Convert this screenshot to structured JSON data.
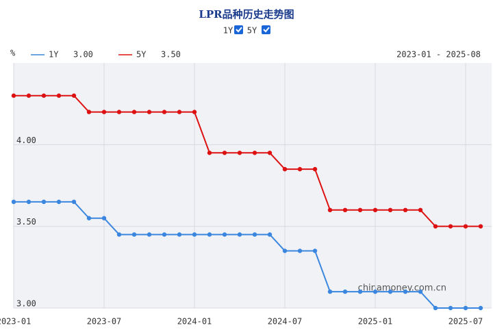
{
  "chart_data": {
    "type": "line",
    "title": "LPR品种历史走势图",
    "y_unit": "%",
    "range_label": "2023-01 - 2025-08",
    "watermark": "chinamoney.com.cn",
    "categories": [
      "2023-01",
      null,
      null,
      null,
      null,
      null,
      "2023-07",
      null,
      null,
      null,
      null,
      null,
      "2024-01",
      null,
      null,
      null,
      null,
      null,
      "2024-07",
      null,
      null,
      null,
      null,
      null,
      "2025-01",
      null,
      null,
      null,
      null,
      null,
      "2025-07",
      null
    ],
    "series": [
      {
        "name": "1Y",
        "color": "#3b86de",
        "legend_value": "3.00",
        "values": [
          3.65,
          3.65,
          3.65,
          3.65,
          3.65,
          3.55,
          3.55,
          3.45,
          3.45,
          3.45,
          3.45,
          3.45,
          3.45,
          3.45,
          3.45,
          3.45,
          3.45,
          3.45,
          3.35,
          3.35,
          3.35,
          3.1,
          3.1,
          3.1,
          3.1,
          3.1,
          3.1,
          3.1,
          3.0,
          3.0,
          3.0,
          3.0
        ]
      },
      {
        "name": "5Y",
        "color": "#dd1111",
        "legend_value": "3.50",
        "values": [
          4.3,
          4.3,
          4.3,
          4.3,
          4.3,
          4.2,
          4.2,
          4.2,
          4.2,
          4.2,
          4.2,
          4.2,
          4.2,
          3.95,
          3.95,
          3.95,
          3.95,
          3.95,
          3.85,
          3.85,
          3.85,
          3.6,
          3.6,
          3.6,
          3.6,
          3.6,
          3.6,
          3.6,
          3.5,
          3.5,
          3.5,
          3.5
        ]
      }
    ],
    "ylim": [
      3,
      4.5
    ],
    "yticks": [
      {
        "value": 3,
        "label": "3.00"
      },
      {
        "value": 3.5,
        "label": "3.50"
      },
      {
        "value": 4,
        "label": "4.00"
      }
    ],
    "grid": true
  }
}
